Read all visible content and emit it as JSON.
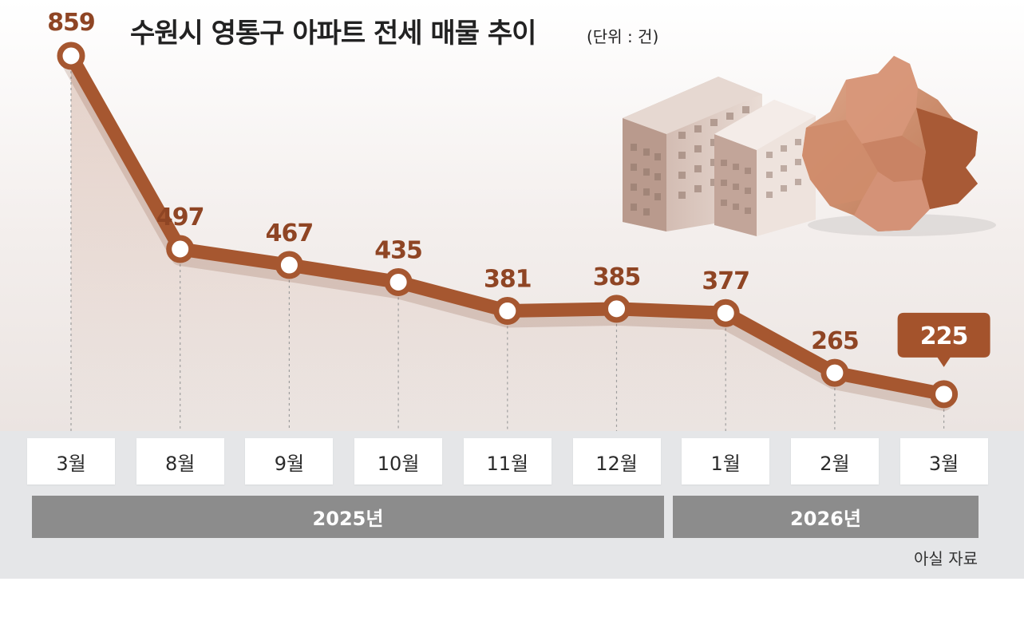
{
  "title": "수원시 영통구 아파트 전세 매물 추이",
  "unit": "(단위 : 건)",
  "source": "아실 자료",
  "colors": {
    "line": "#a65730",
    "value_text": "#8f4524",
    "highlight_box": "#a4532c",
    "year_bar": "#8c8c8c",
    "axis_band": "#e5e6e8"
  },
  "icons": [
    "apartment-buildings-illustration",
    "suwon-district-map-illustration"
  ],
  "chart_data": {
    "type": "line",
    "title": "수원시 영통구 아파트 전세 매물 추이",
    "unit": "(단위 : 건)",
    "categories": [
      "3월",
      "8월",
      "9월",
      "10월",
      "11월",
      "12월",
      "1월",
      "2월",
      "3월"
    ],
    "years": [
      {
        "label": "2025년",
        "months": [
          "3월",
          "8월",
          "9월",
          "10월",
          "11월",
          "12월"
        ]
      },
      {
        "label": "2026년",
        "months": [
          "1월",
          "2월",
          "3월"
        ]
      }
    ],
    "series": [
      {
        "values": [
          859,
          497,
          467,
          435,
          381,
          385,
          377,
          265,
          225
        ]
      }
    ],
    "highlight_index": 8,
    "grid": false,
    "legend": "none"
  }
}
